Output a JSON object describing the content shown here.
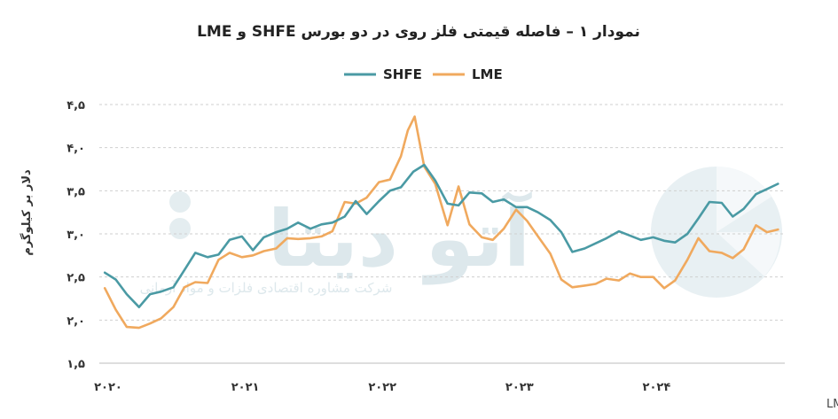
{
  "chart_data": {
    "type": "line",
    "title": "نمودار ۱ – فاصله قیمتی فلز روی در دو بورس SHFE و LME",
    "ylabel": "دلار بر کیلوگرم",
    "xlabel": "",
    "source": "منبع: LME, SHFE",
    "ylim": [
      1.5,
      4.5
    ],
    "yticks": [
      1.5,
      2.0,
      2.5,
      3.0,
      3.5,
      4.0,
      4.5
    ],
    "ytick_labels": [
      "۱,۵",
      "۲,۰",
      "۲,۵",
      "۳,۰",
      "۳,۵",
      "۴,۰",
      "۴,۵"
    ],
    "xlim": [
      2020.0,
      2025.0
    ],
    "xticks": [
      2020,
      2021,
      2022,
      2023,
      2024
    ],
    "xtick_labels": [
      "۲۰۲۰",
      "۲۰۲۱",
      "۲۰۲۲",
      "۲۰۲۳",
      "۲۰۲۴"
    ],
    "grid": "horizontal",
    "legend_position": "top-center",
    "watermark": {
      "text": "آتو دیتا",
      "subtext": "شرکت مشاوره اقتصادی فلزات و مواد آرمانی"
    },
    "series": [
      {
        "name": "SHFE",
        "color": "#4a9aa4",
        "x": [
          2020.04,
          2020.12,
          2020.2,
          2020.29,
          2020.37,
          2020.45,
          2020.54,
          2020.62,
          2020.7,
          2020.79,
          2020.87,
          2020.95,
          2021.04,
          2021.12,
          2021.2,
          2021.29,
          2021.37,
          2021.45,
          2021.54,
          2021.62,
          2021.7,
          2021.79,
          2021.87,
          2021.95,
          2022.04,
          2022.12,
          2022.2,
          2022.29,
          2022.37,
          2022.45,
          2022.54,
          2022.62,
          2022.7,
          2022.79,
          2022.87,
          2022.95,
          2023.04,
          2023.12,
          2023.2,
          2023.29,
          2023.37,
          2023.45,
          2023.54,
          2023.62,
          2023.7,
          2023.79,
          2023.87,
          2023.95,
          2024.04,
          2024.12,
          2024.2,
          2024.29,
          2024.37,
          2024.45,
          2024.54,
          2024.62,
          2024.7,
          2024.79,
          2024.87,
          2024.95
        ],
        "values": [
          2.55,
          2.47,
          2.3,
          2.15,
          2.3,
          2.33,
          2.38,
          2.58,
          2.78,
          2.73,
          2.76,
          2.93,
          2.97,
          2.81,
          2.96,
          3.02,
          3.06,
          3.13,
          3.06,
          3.11,
          3.13,
          3.2,
          3.38,
          3.23,
          3.38,
          3.5,
          3.54,
          3.72,
          3.8,
          3.62,
          3.35,
          3.33,
          3.48,
          3.47,
          3.37,
          3.4,
          3.31,
          3.31,
          3.25,
          3.16,
          3.02,
          2.79,
          2.83,
          2.89,
          2.95,
          3.03,
          2.98,
          2.93,
          2.96,
          2.92,
          2.9,
          3.0,
          3.18,
          3.37,
          3.36,
          3.2,
          3.29,
          3.46,
          3.52,
          3.58
        ]
      },
      {
        "name": "LME",
        "color": "#f0a95e",
        "x": [
          2020.04,
          2020.12,
          2020.2,
          2020.29,
          2020.37,
          2020.45,
          2020.54,
          2020.62,
          2020.7,
          2020.79,
          2020.87,
          2020.95,
          2021.04,
          2021.12,
          2021.2,
          2021.29,
          2021.37,
          2021.45,
          2021.54,
          2021.62,
          2021.7,
          2021.79,
          2021.87,
          2021.95,
          2022.04,
          2022.12,
          2022.2,
          2022.25,
          2022.3,
          2022.37,
          2022.45,
          2022.54,
          2022.62,
          2022.7,
          2022.79,
          2022.87,
          2022.95,
          2023.04,
          2023.12,
          2023.2,
          2023.29,
          2023.37,
          2023.45,
          2023.54,
          2023.62,
          2023.7,
          2023.79,
          2023.87,
          2023.95,
          2024.04,
          2024.12,
          2024.2,
          2024.29,
          2024.37,
          2024.45,
          2024.54,
          2024.62,
          2024.7,
          2024.79,
          2024.87,
          2024.95
        ],
        "values": [
          2.37,
          2.12,
          1.92,
          1.91,
          1.96,
          2.02,
          2.15,
          2.38,
          2.44,
          2.43,
          2.7,
          2.78,
          2.73,
          2.75,
          2.8,
          2.83,
          2.95,
          2.94,
          2.95,
          2.97,
          3.03,
          3.37,
          3.35,
          3.42,
          3.6,
          3.63,
          3.9,
          4.2,
          4.36,
          3.78,
          3.58,
          3.1,
          3.55,
          3.11,
          2.96,
          2.93,
          3.06,
          3.28,
          3.15,
          2.97,
          2.77,
          2.47,
          2.38,
          2.4,
          2.42,
          2.48,
          2.46,
          2.54,
          2.5,
          2.5,
          2.37,
          2.46,
          2.7,
          2.95,
          2.8,
          2.78,
          2.72,
          2.82,
          3.1,
          3.02,
          3.05
        ]
      }
    ]
  }
}
